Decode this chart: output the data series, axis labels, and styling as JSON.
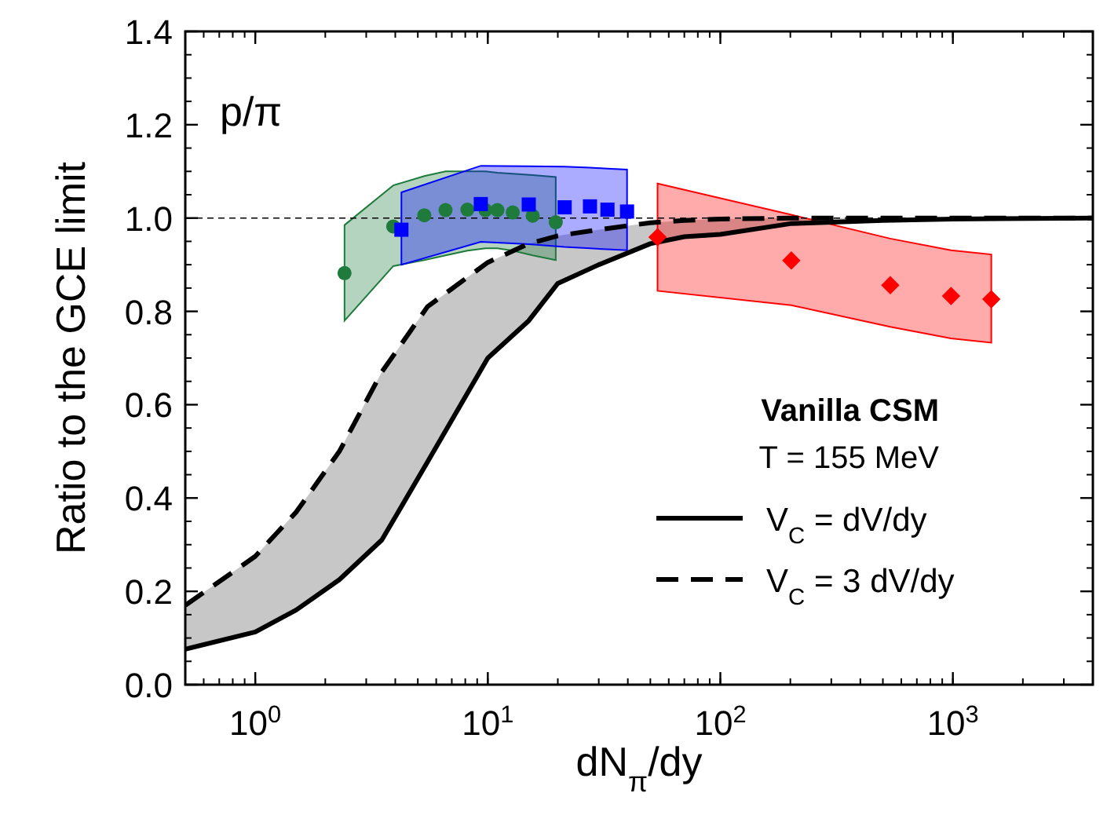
{
  "chart_data": {
    "type": "line",
    "xlabel": "dN$_{π}$/dy",
    "ylabel": "Ratio to the GCE limit",
    "log": "x",
    "grid": false,
    "legend": "right",
    "xlim": [
      0.5,
      4000
    ],
    "xticks": [
      {
        "value": 1,
        "label": "10$^{0}$"
      },
      {
        "value": 10,
        "label": "10$^{1}$"
      },
      {
        "value": 100,
        "label": "10$^{2}$"
      },
      {
        "value": 1000,
        "label": "10$^{3}$"
      }
    ],
    "ylim": [
      0,
      1.4
    ],
    "yticks": [
      {
        "value": 0,
        "label": "0.0"
      },
      {
        "value": 0.2,
        "label": "0.2"
      },
      {
        "value": 0.4,
        "label": "0.4"
      },
      {
        "value": 0.6,
        "label": "0.6"
      },
      {
        "value": 0.8,
        "label": "0.8"
      },
      {
        "value": 1,
        "label": "1.0"
      },
      {
        "value": 1.2,
        "label": "1.2"
      },
      {
        "value": 1.4,
        "label": "1.4"
      }
    ],
    "annotations": [
      "p/π",
      "Vanilla CSM",
      "T = 155 MeV"
    ],
    "ref_lines": [
      {
        "axis": "y",
        "value": 1,
        "label": null,
        "color": "#000000",
        "line_style": "dashed"
      }
    ],
    "series": [
      {
        "name": "V$_{C}$ = dV/dy",
        "color": "#000000",
        "line_style": "solid",
        "marker": "none",
        "x": [
          0.5,
          1,
          1.5,
          2.3,
          3.5,
          5.5,
          10,
          15,
          20,
          30,
          50,
          70,
          100,
          200,
          500,
          1000,
          4000
        ],
        "values": [
          0.076,
          0.113,
          0.16,
          0.225,
          0.31,
          0.477,
          0.7,
          0.78,
          0.86,
          0.9,
          0.945,
          0.96,
          0.965,
          0.988,
          0.995,
          0.998,
          1.0
        ]
      },
      {
        "name": "V$_{C}$ = 3 dV/dy",
        "color": "#000000",
        "line_style": "dashed",
        "marker": "none",
        "x": [
          0.5,
          1,
          1.5,
          2.3,
          3.5,
          5.5,
          10,
          15,
          20,
          30,
          50,
          70,
          100,
          200,
          500,
          1000,
          4000
        ],
        "values": [
          0.17,
          0.275,
          0.37,
          0.5,
          0.67,
          0.81,
          0.905,
          0.945,
          0.962,
          0.975,
          0.99,
          0.995,
          0.998,
          1.0,
          1.0,
          1.0,
          1.0
        ],
        "lower": [
          0.076,
          0.113,
          0.16,
          0.225,
          0.31,
          0.477,
          0.7,
          0.78,
          0.86,
          0.9,
          0.945,
          0.96,
          0.965,
          0.988,
          0.995,
          0.998,
          1.0
        ],
        "upper": [
          0.17,
          0.275,
          0.37,
          0.5,
          0.67,
          0.81,
          0.905,
          0.945,
          0.962,
          0.975,
          0.99,
          0.995,
          0.998,
          1.0,
          1.0,
          1.0,
          1.0
        ]
      },
      {
        "type": "scatter",
        "color": "#1e7b3c",
        "marker": "circle",
        "x": [
          2.42,
          3.92,
          5.33,
          6.58,
          8.17,
          9.77,
          11,
          12.8,
          15.6,
          19.6
        ],
        "values": [
          0.882,
          0.982,
          1.006,
          1.017,
          1.018,
          1.017,
          1.017,
          1.012,
          1.005,
          0.991
        ],
        "upper": [
          0.985,
          1.07,
          1.09,
          1.1,
          1.1,
          1.1,
          1.097,
          1.095,
          1.092,
          1.088
        ],
        "lower": [
          0.78,
          0.897,
          0.91,
          0.92,
          0.93,
          0.935,
          0.935,
          0.93,
          0.92,
          0.91
        ]
      },
      {
        "type": "scatter",
        "color": "#0000ff",
        "marker": "square",
        "x": [
          4.25,
          9.33,
          15,
          21.4,
          27.5,
          32.7,
          39.7
        ],
        "values": [
          0.975,
          1.03,
          1.029,
          1.023,
          1.025,
          1.018,
          1.014
        ],
        "upper": [
          1.055,
          1.112,
          1.111,
          1.11,
          1.108,
          1.106,
          1.104
        ],
        "lower": [
          0.9,
          0.949,
          0.944,
          0.938,
          0.935,
          0.933,
          0.931
        ]
      },
      {
        "type": "scatter",
        "color": "#ff0000",
        "marker": "diamond",
        "x": [
          53.7,
          202,
          538,
          982,
          1463
        ],
        "values": [
          0.959,
          0.909,
          0.856,
          0.833,
          0.826
        ],
        "upper": [
          1.074,
          1.007,
          0.956,
          0.931,
          0.922
        ],
        "lower": [
          0.844,
          0.813,
          0.767,
          0.742,
          0.733
        ]
      }
    ]
  }
}
